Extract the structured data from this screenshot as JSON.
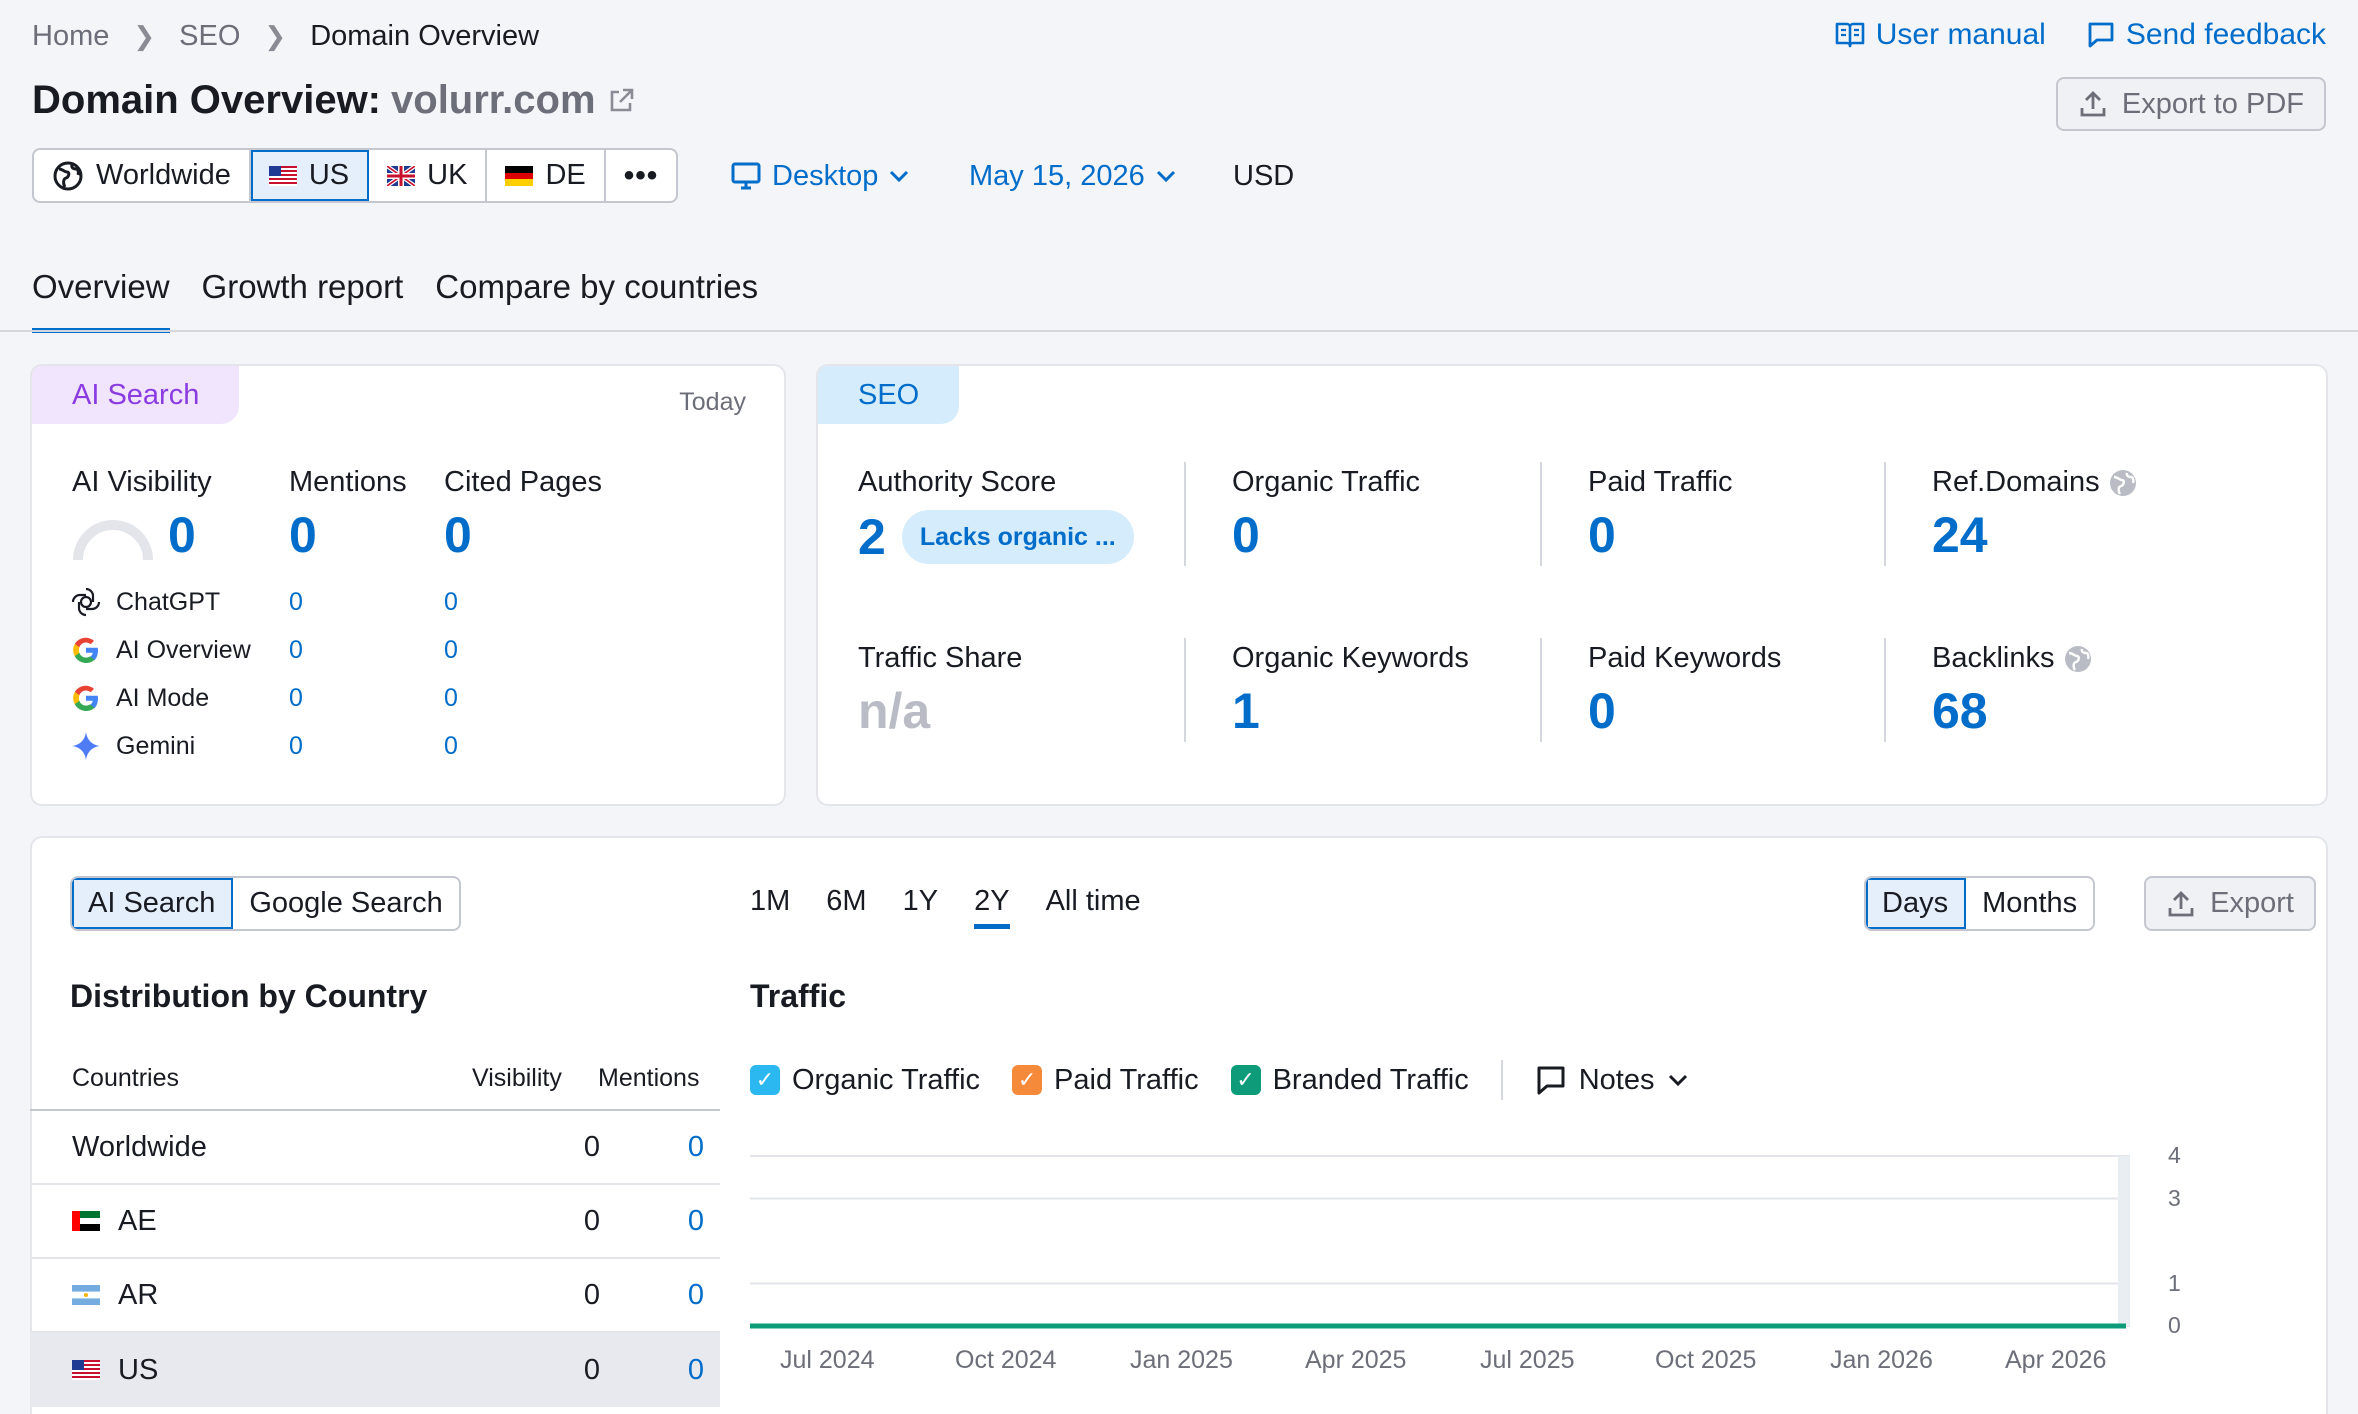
{
  "breadcrumb": {
    "home": "Home",
    "seo": "SEO",
    "current": "Domain Overview"
  },
  "toplinks": {
    "manual": "User manual",
    "feedback": "Send feedback"
  },
  "header": {
    "title": "Domain Overview:",
    "domain": "volurr.com",
    "export_pdf": "Export to PDF"
  },
  "regions": [
    "Worldwide",
    "US",
    "UK",
    "DE"
  ],
  "device": "Desktop",
  "date": "May 15, 2026",
  "currency": "USD",
  "tabs": [
    "Overview",
    "Growth report",
    "Compare by countries"
  ],
  "ai_card": {
    "badge": "AI Search",
    "today": "Today",
    "headers": {
      "visibility": "AI Visibility",
      "mentions": "Mentions",
      "cited": "Cited Pages"
    },
    "totals": {
      "visibility": "0",
      "mentions": "0",
      "cited": "0"
    },
    "rows": [
      {
        "name": "ChatGPT",
        "mentions": "0",
        "cited": "0"
      },
      {
        "name": "AI Overview",
        "mentions": "0",
        "cited": "0"
      },
      {
        "name": "AI Mode",
        "mentions": "0",
        "cited": "0"
      },
      {
        "name": "Gemini",
        "mentions": "0",
        "cited": "0"
      }
    ]
  },
  "seo_card": {
    "badge": "SEO",
    "authority_label": "Authority Score",
    "authority_value": "2",
    "authority_pill": "Lacks organic ...",
    "organic_traffic_label": "Organic Traffic",
    "organic_traffic_value": "0",
    "paid_traffic_label": "Paid Traffic",
    "paid_traffic_value": "0",
    "ref_domains_label": "Ref.Domains",
    "ref_domains_value": "24",
    "traffic_share_label": "Traffic Share",
    "traffic_share_value": "n/a",
    "organic_keywords_label": "Organic Keywords",
    "organic_keywords_value": "1",
    "paid_keywords_label": "Paid Keywords",
    "paid_keywords_value": "0",
    "backlinks_label": "Backlinks",
    "backlinks_value": "68"
  },
  "bottom": {
    "search_toggle": [
      "AI Search",
      "Google Search"
    ],
    "ranges": [
      "1M",
      "6M",
      "1Y",
      "2Y",
      "All time"
    ],
    "granularity": [
      "Days",
      "Months"
    ],
    "export": "Export",
    "dist_title": "Distribution by Country",
    "col_countries": "Countries",
    "col_visibility": "Visibility",
    "col_mentions": "Mentions",
    "countries": [
      {
        "name": "Worldwide",
        "visibility": "0",
        "mentions": "0"
      },
      {
        "name": "AE",
        "visibility": "0",
        "mentions": "0"
      },
      {
        "name": "AR",
        "visibility": "0",
        "mentions": "0"
      },
      {
        "name": "US",
        "visibility": "0",
        "mentions": "0"
      }
    ],
    "traffic_title": "Traffic",
    "notes": "Notes"
  },
  "chart_data": {
    "type": "line",
    "title": "Traffic",
    "xlabel": "",
    "ylabel": "",
    "x_ticks": [
      "Jul 2024",
      "Oct 2024",
      "Jan 2025",
      "Apr 2025",
      "Jul 2025",
      "Oct 2025",
      "Jan 2026",
      "Apr 2026"
    ],
    "y_ticks": [
      "4",
      "3",
      "1",
      "0"
    ],
    "ylim": [
      0,
      4
    ],
    "series": [
      {
        "name": "Organic Traffic",
        "color": "#2bb7f0",
        "values": [
          0,
          0,
          0,
          0,
          0,
          0,
          0,
          0
        ]
      },
      {
        "name": "Paid Traffic",
        "color": "#f58a3b",
        "values": [
          0,
          0,
          0,
          0,
          0,
          0,
          0,
          0
        ]
      },
      {
        "name": "Branded Traffic",
        "color": "#0d9b7a",
        "values": [
          0,
          0,
          0,
          0,
          0,
          0,
          0,
          0
        ]
      }
    ]
  }
}
